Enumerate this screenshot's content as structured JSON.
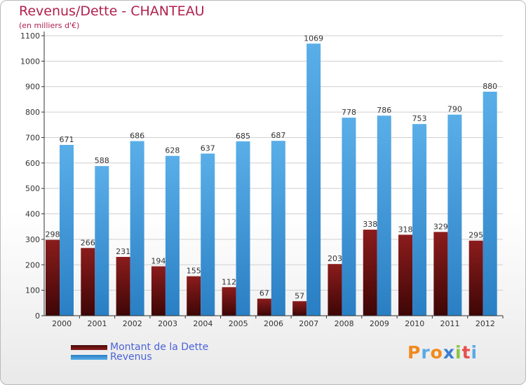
{
  "chart_data": {
    "type": "bar",
    "title": "Revenus/Dette - CHANTEAU",
    "subtitle": "(en milliers d'€)",
    "xlabel": "",
    "ylabel": "",
    "ylim": [
      0,
      1100
    ],
    "yticks": [
      0,
      100,
      200,
      300,
      400,
      500,
      600,
      700,
      800,
      900,
      1000,
      1100
    ],
    "grid": true,
    "legend_position": "bottom-left",
    "categories": [
      "2000",
      "2001",
      "2002",
      "2003",
      "2004",
      "2005",
      "2006",
      "2007",
      "2008",
      "2009",
      "2010",
      "2011",
      "2012"
    ],
    "series": [
      {
        "name": "Montant de la Dette",
        "color": "#8b1c1c",
        "values": [
          298,
          266,
          231,
          194,
          155,
          112,
          67,
          57,
          203,
          338,
          318,
          329,
          295
        ]
      },
      {
        "name": "Revenus",
        "color": "#4fa3e4",
        "values": [
          671,
          588,
          686,
          628,
          637,
          685,
          687,
          1069,
          778,
          786,
          753,
          790,
          880
        ]
      }
    ]
  },
  "logo": {
    "letters": [
      "P",
      "r",
      "o",
      "x",
      "i",
      "t",
      "i"
    ],
    "colors": [
      "#f08a1c",
      "#5aa9e6",
      "#f08a1c",
      "#3a7fd0",
      "#8cc63f",
      "#e84e4e",
      "#5aa9e6"
    ]
  }
}
